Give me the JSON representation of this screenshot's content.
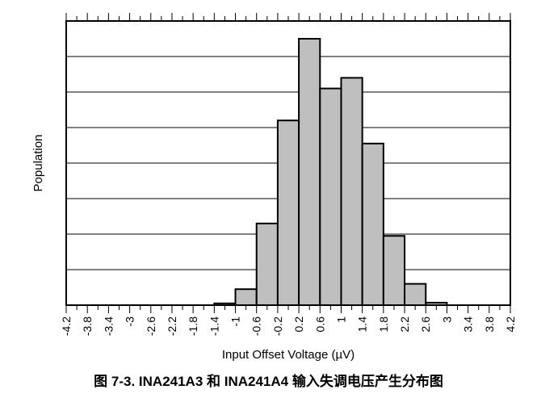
{
  "caption": "图 7-3. INA241A3 和 INA241A4 输入失调电压产生分布图",
  "chart_data": {
    "type": "bar",
    "title": "",
    "xlabel": "Input Offset Voltage (µV)",
    "ylabel": "Population",
    "x_ticks": [
      "-4.2",
      "-3.8",
      "-3.4",
      "-3",
      "-2.6",
      "-2.2",
      "-1.8",
      "-1.4",
      "-1",
      "-0.6",
      "-0.2",
      "0.2",
      "0.6",
      "1",
      "1.4",
      "1.8",
      "2.2",
      "2.6",
      "3",
      "3.4",
      "3.8",
      "4.2"
    ],
    "xlim": [
      -4.2,
      4.2
    ],
    "ylim": [
      0,
      8
    ],
    "y_tick_labels": "none",
    "grid": "horizontal",
    "bin_width": 0.4,
    "bins": [
      {
        "x0": -1.4,
        "x1": -1.0,
        "value": 0.05
      },
      {
        "x0": -1.0,
        "x1": -0.6,
        "value": 0.45
      },
      {
        "x0": -0.6,
        "x1": -0.2,
        "value": 2.3
      },
      {
        "x0": -0.2,
        "x1": 0.2,
        "value": 5.2
      },
      {
        "x0": 0.2,
        "x1": 0.6,
        "value": 7.5
      },
      {
        "x0": 0.6,
        "x1": 1.0,
        "value": 6.1
      },
      {
        "x0": 1.0,
        "x1": 1.4,
        "value": 6.4
      },
      {
        "x0": 1.4,
        "x1": 1.8,
        "value": 4.55
      },
      {
        "x0": 1.8,
        "x1": 2.2,
        "value": 1.95
      },
      {
        "x0": 2.2,
        "x1": 2.6,
        "value": 0.6
      },
      {
        "x0": 2.6,
        "x1": 3.0,
        "value": 0.07
      }
    ],
    "bar_color": "#bfbfbf",
    "bar_edge_color": "#000000"
  }
}
